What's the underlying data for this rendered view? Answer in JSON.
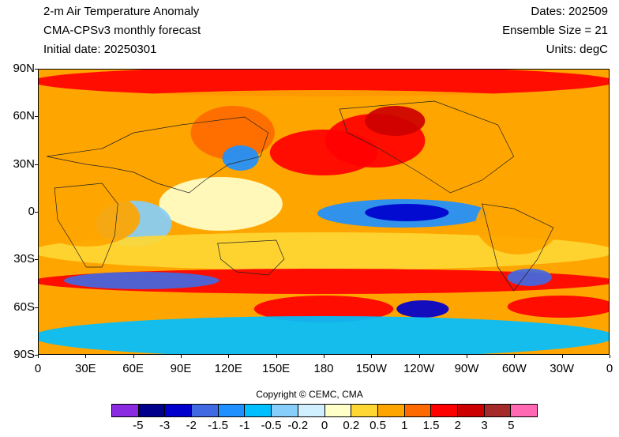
{
  "header": {
    "title": "2-m Air Temperature Anomaly",
    "model": "CMA-CPSv3 monthly forecast",
    "initial_date": "Initial date: 20250301",
    "dates": "Dates: 202509",
    "ensemble": "Ensemble Size = 21",
    "units": "Units: degC"
  },
  "map": {
    "projection": "cylindrical-equidistant",
    "lon_range": [
      0,
      360
    ],
    "lat_range": [
      -90,
      90
    ],
    "lat_labels": [
      "90N",
      "60N",
      "30N",
      "0",
      "30S",
      "60S",
      "90S"
    ],
    "lon_labels": [
      "0",
      "30E",
      "60E",
      "90E",
      "120E",
      "150E",
      "180",
      "150W",
      "120W",
      "90W",
      "60W",
      "30W",
      "0"
    ],
    "features": [
      {
        "lon0": 0,
        "lon1": 360,
        "lat0": 75,
        "lat1": 90,
        "level": 1.8
      },
      {
        "lon0": 0,
        "lon1": 360,
        "lat0": 55,
        "lat1": 75,
        "level": 0.8
      },
      {
        "lon0": 100,
        "lon1": 145,
        "lat0": 35,
        "lat1": 65,
        "level": 1.1
      },
      {
        "lon0": 150,
        "lon1": 210,
        "lat0": 25,
        "lat1": 50,
        "level": 1.7
      },
      {
        "lon0": 185,
        "lon1": 240,
        "lat0": 30,
        "lat1": 60,
        "level": 1.6
      },
      {
        "lon0": 210,
        "lon1": 240,
        "lat0": 50,
        "lat1": 65,
        "level": 2.4
      },
      {
        "lon0": 120,
        "lon1": 135,
        "lat0": 28,
        "lat1": 40,
        "level": -1.2
      },
      {
        "lon0": 80,
        "lon1": 150,
        "lat0": -10,
        "lat1": 20,
        "level": 0.1
      },
      {
        "lon0": 180,
        "lon1": 280,
        "lat0": -8,
        "lat1": 6,
        "level": -1.1
      },
      {
        "lon0": 210,
        "lon1": 255,
        "lat0": -4,
        "lat1": 3,
        "level": -2.2
      },
      {
        "lon0": 40,
        "lon1": 80,
        "lat0": -20,
        "lat1": 5,
        "level": -0.4
      },
      {
        "lon0": 0,
        "lon1": 360,
        "lat0": -35,
        "lat1": -15,
        "level": 0.3
      },
      {
        "lon0": 0,
        "lon1": 360,
        "lat0": -50,
        "lat1": -38,
        "level": 1.5
      },
      {
        "lon0": 20,
        "lon1": 110,
        "lat0": -47,
        "lat1": -40,
        "level": -1.6
      },
      {
        "lon0": 300,
        "lon1": 320,
        "lat0": -45,
        "lat1": -38,
        "level": -1.8
      },
      {
        "lon0": 140,
        "lon1": 220,
        "lat0": -68,
        "lat1": -55,
        "level": 1.8
      },
      {
        "lon0": 300,
        "lon1": 360,
        "lat0": -65,
        "lat1": -55,
        "level": 1.7
      },
      {
        "lon0": 230,
        "lon1": 255,
        "lat0": -65,
        "lat1": -58,
        "level": -2.5
      },
      {
        "lon0": 0,
        "lon1": 360,
        "lat0": -90,
        "lat1": -68,
        "level": -0.7
      },
      {
        "lon0": 0,
        "lon1": 60,
        "lat0": -20,
        "lat1": 12,
        "level": 0.6
      },
      {
        "lon0": 280,
        "lon1": 325,
        "lat0": -25,
        "lat1": 10,
        "level": 0.6
      }
    ]
  },
  "copyright": "Copyright © CEMC, CMA",
  "colorbar": {
    "labels": [
      "-5",
      "-3",
      "-2",
      "-1.5",
      "-1",
      "-0.5",
      "-0.2",
      "0",
      "0.2",
      "0.5",
      "1",
      "1.5",
      "2",
      "3",
      "5"
    ],
    "thresholds": [
      -5,
      -3,
      -2,
      -1.5,
      -1,
      -0.5,
      -0.2,
      0,
      0.2,
      0.5,
      1,
      1.5,
      2,
      3,
      5
    ],
    "colors": [
      "#8a2be2",
      "#00008b",
      "#0000cd",
      "#4169e1",
      "#1e90ff",
      "#00bfff",
      "#87cefa",
      "#d0f0ff",
      "#ffffc8",
      "#ffd733",
      "#ffa500",
      "#ff6a00",
      "#ff0000",
      "#cd0000",
      "#a52a2a",
      "#ff69b4"
    ]
  }
}
